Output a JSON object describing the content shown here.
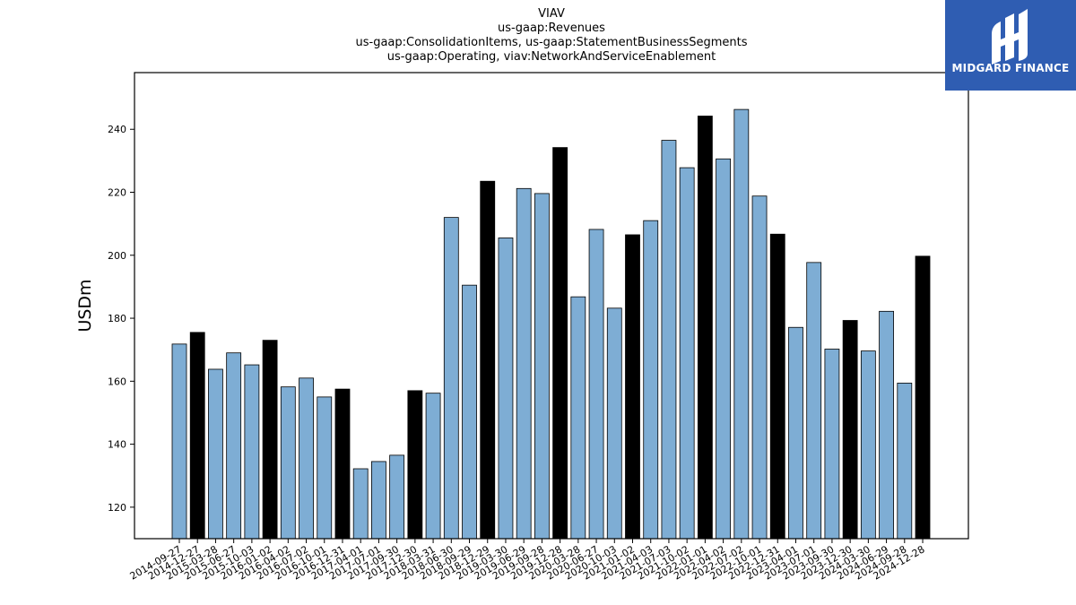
{
  "titles": [
    "VIAV",
    "us-gaap:Revenues",
    "us-gaap:ConsolidationItems, us-gaap:StatementBusinessSegments",
    "us-gaap:Operating, viav:NetworkAndServiceEnablement"
  ],
  "logo": {
    "text": "MIDGARD FINANCE",
    "icon": "midgard-logo-icon",
    "color": "#2f5db2"
  },
  "chart_data": {
    "type": "bar",
    "title": "VIAV",
    "xlabel": "",
    "ylabel": "USDm",
    "ylim": [
      110,
      258
    ],
    "yticks": [
      120,
      140,
      160,
      180,
      200,
      220,
      240
    ],
    "colors": {
      "quarter": "#7eadd4",
      "fiscal_year_end": "#000000",
      "edge": "#000000"
    },
    "categories": [
      "2014-09-27",
      "2014-12-27",
      "2015-03-28",
      "2015-06-27",
      "2015-10-03",
      "2016-01-02",
      "2016-04-02",
      "2016-07-02",
      "2016-10-01",
      "2016-12-31",
      "2017-04-01",
      "2017-07-01",
      "2017-09-30",
      "2017-12-30",
      "2018-03-31",
      "2018-06-30",
      "2018-09-29",
      "2018-12-29",
      "2019-03-30",
      "2019-06-29",
      "2019-09-28",
      "2019-12-28",
      "2020-03-28",
      "2020-06-27",
      "2020-10-03",
      "2021-01-02",
      "2021-04-03",
      "2021-07-03",
      "2021-10-02",
      "2022-01-01",
      "2022-04-02",
      "2022-07-02",
      "2022-10-01",
      "2022-12-31",
      "2023-04-01",
      "2023-07-01",
      "2023-09-30",
      "2023-12-30",
      "2024-03-30",
      "2024-06-29",
      "2024-09-28",
      "2024-12-28"
    ],
    "values": [
      171.8,
      175.5,
      163.8,
      169.0,
      165.2,
      173.0,
      158.2,
      161.0,
      155.0,
      157.5,
      132.2,
      134.5,
      136.5,
      157.0,
      156.2,
      212.0,
      190.5,
      223.5,
      205.5,
      221.2,
      219.6,
      234.2,
      186.8,
      208.2,
      183.2,
      206.5,
      211.0,
      236.5,
      227.8,
      244.2,
      230.6,
      246.3,
      218.8,
      206.7,
      177.1,
      197.7,
      170.2,
      179.3,
      169.6,
      182.2,
      159.4,
      199.7
    ],
    "highlight": [
      false,
      true,
      false,
      false,
      false,
      true,
      false,
      false,
      false,
      true,
      false,
      false,
      false,
      true,
      false,
      false,
      false,
      true,
      false,
      false,
      false,
      true,
      false,
      false,
      false,
      true,
      false,
      false,
      false,
      true,
      false,
      false,
      false,
      true,
      false,
      false,
      false,
      true,
      false,
      false,
      false,
      true
    ]
  }
}
